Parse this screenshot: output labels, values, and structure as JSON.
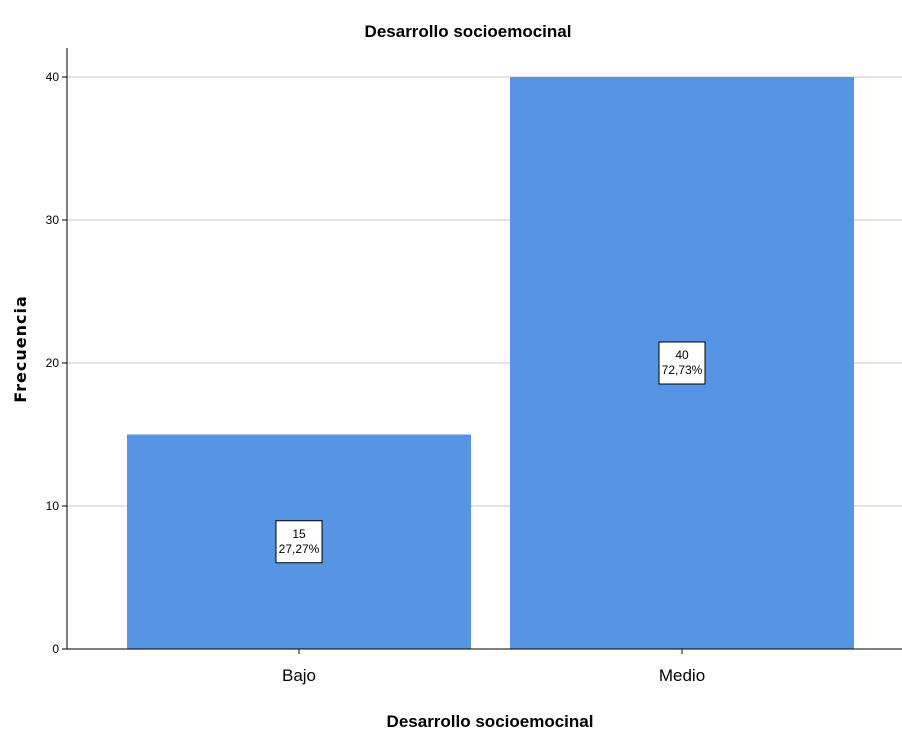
{
  "chart_data": {
    "type": "bar",
    "title": "Desarrollo socioemocinal",
    "xlabel": "Desarrollo socioemocinal",
    "ylabel": "Frecuencia",
    "categories": [
      "Bajo",
      "Medio"
    ],
    "values": [
      15,
      40
    ],
    "data_labels": [
      {
        "count": "15",
        "percent": "27,27%"
      },
      {
        "count": "40",
        "percent": "72,73%"
      }
    ],
    "ylim": [
      0,
      40
    ],
    "yticks": [
      0,
      10,
      20,
      30,
      40
    ],
    "ytick_labels": [
      "0",
      "10",
      "20",
      "30",
      "40"
    ],
    "grid": true,
    "bar_color": "#5595e3",
    "grid_color": "#c8c8c8",
    "axis_color": "#000000"
  }
}
